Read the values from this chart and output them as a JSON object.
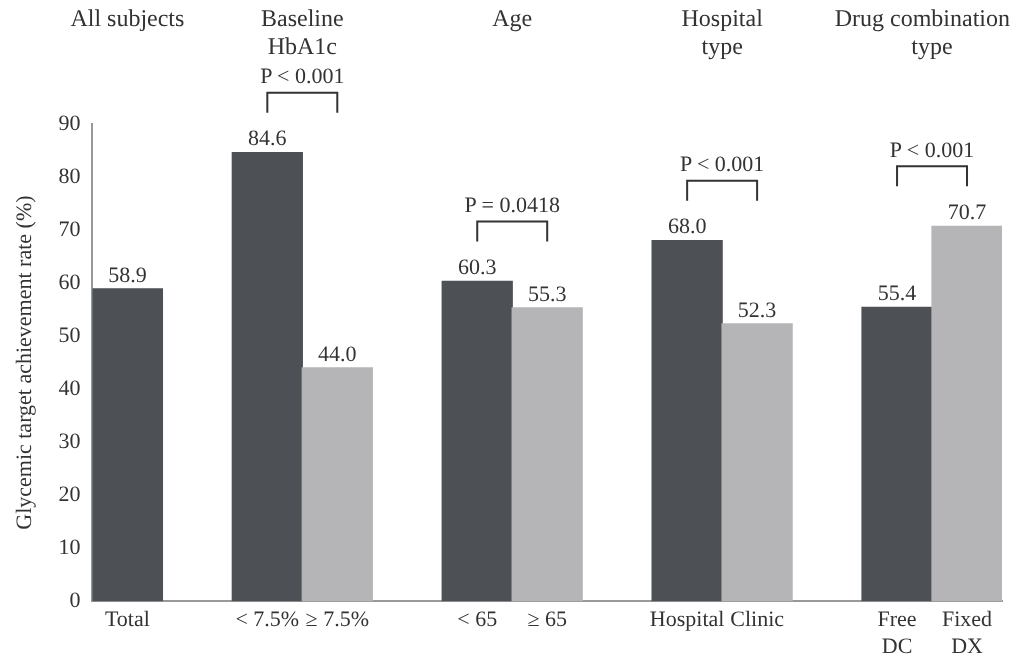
{
  "chart_data": {
    "type": "bar",
    "ylabel": "Glycemic target achievement rate (%)",
    "categories": [
      "Total",
      null,
      "< 7.5%",
      "≥ 7.5%",
      null,
      "< 65",
      "≥ 65",
      null,
      "Hospital",
      "Clinic",
      null,
      "Free\nDC",
      "Fixed\nDX"
    ],
    "values": [
      58.9,
      null,
      84.6,
      44.0,
      null,
      60.3,
      55.3,
      null,
      68.0,
      52.3,
      null,
      55.4,
      70.7
    ],
    "colors": [
      "#4d5055",
      null,
      "#4d5055",
      "#b5b5b7",
      null,
      "#4d5055",
      "#b5b5b7",
      null,
      "#4d5055",
      "#b5b5b7",
      null,
      "#4d5055",
      "#b5b5b7"
    ],
    "ylim": [
      0,
      90
    ],
    "yticks": [
      0,
      10,
      20,
      30,
      40,
      50,
      60,
      70,
      80,
      90
    ],
    "grid": false,
    "legend": false,
    "value_labels": [
      "58.9",
      null,
      "84.6",
      "44.0",
      null,
      "60.3",
      "55.3",
      null,
      "68.0",
      "52.3",
      null,
      "55.4",
      "70.7"
    ],
    "annotations": [
      "All subjects",
      "Baseline\nHbA1c",
      "Age",
      "Hospital\ntype",
      "Drug combination\ntype",
      "P < 0.001",
      "P = 0.0418",
      "P < 0.001",
      "P < 0.001"
    ]
  }
}
